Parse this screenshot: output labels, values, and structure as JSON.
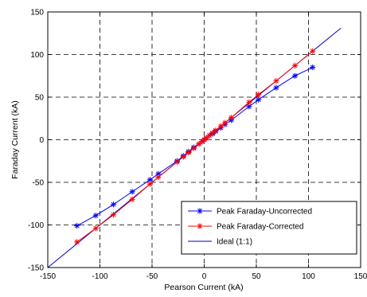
{
  "chart_data": {
    "type": "line",
    "xlabel": "Pearson Current (kA)",
    "ylabel": "Faraday Current (kA)",
    "xlim": [
      -150,
      150
    ],
    "ylim": [
      -150,
      150
    ],
    "xticks": [
      -150,
      -100,
      -50,
      0,
      50,
      100,
      150
    ],
    "yticks": [
      -150,
      -100,
      -50,
      0,
      50,
      100,
      150
    ],
    "grid": true,
    "legend_position": "bottom-right",
    "series": [
      {
        "name": "Peak Faraday-Uncorrected",
        "color": "#0000ff",
        "marker": "asterisk",
        "x": [
          -122,
          -104,
          -87,
          -69,
          -52,
          -44,
          -26,
          -20,
          -15,
          -10,
          -5,
          -2,
          0,
          2,
          5,
          8,
          11,
          16,
          20,
          26,
          43,
          52,
          69,
          87,
          104
        ],
        "y": [
          -101,
          -89,
          -76,
          -61,
          -47,
          -40,
          -25,
          -19,
          -14,
          -9,
          -5,
          -2,
          0,
          2,
          5,
          7,
          10,
          14,
          18,
          23,
          39,
          47,
          61,
          75,
          85
        ]
      },
      {
        "name": "Peak Faraday-Corrected",
        "color": "#ff0000",
        "marker": "asterisk",
        "x": [
          -122,
          -104,
          -87,
          -69,
          -52,
          -44,
          -26,
          -20,
          -15,
          -10,
          -5,
          -2,
          0,
          2,
          5,
          8,
          11,
          16,
          20,
          26,
          43,
          52,
          69,
          87,
          104
        ],
        "y": [
          -120,
          -104,
          -88,
          -70,
          -52,
          -44,
          -26,
          -20,
          -15,
          -10,
          -5,
          -2,
          0,
          2,
          5,
          8,
          11,
          16,
          20,
          26,
          44,
          53,
          69,
          87,
          104
        ]
      },
      {
        "name": "Ideal (1:1)",
        "color": "#0000cc",
        "marker": "none",
        "x": [
          -150,
          131
        ],
        "y": [
          -150,
          131
        ]
      }
    ]
  }
}
